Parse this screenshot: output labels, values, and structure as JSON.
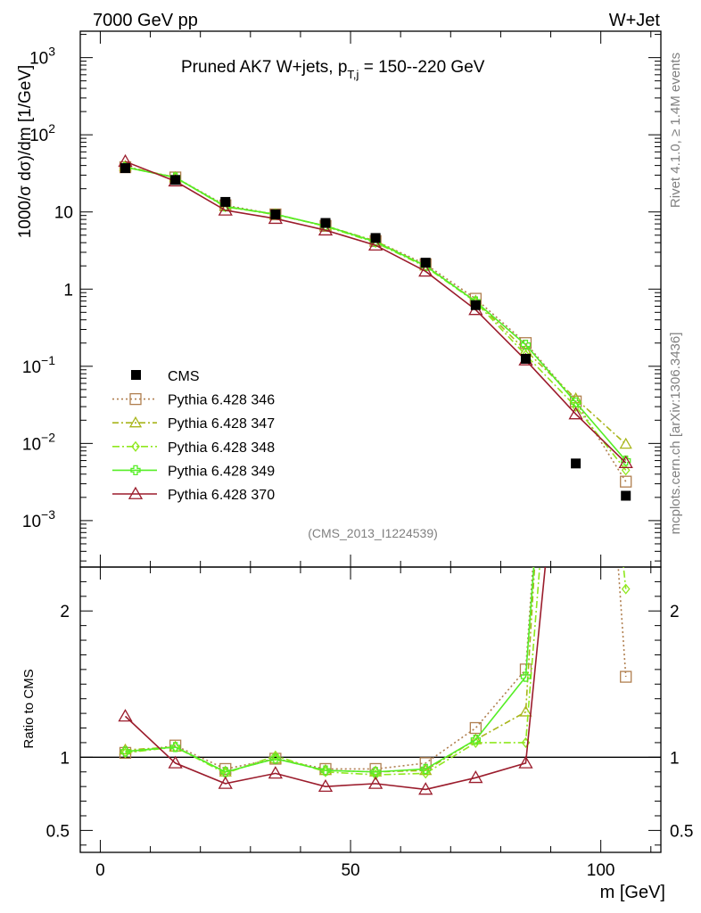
{
  "header": {
    "energy_label": "7000 GeV pp",
    "process_label": "W+Jet"
  },
  "side": {
    "rivet_label": "Rivet 4.1.0, ≥ 1.4M events",
    "source_label": "mcplots.cern.ch [arXiv:1306.3436]"
  },
  "chart_data": {
    "type": "line",
    "title_main": "Pruned AK7 W+jets, p",
    "title_sub": "T,j",
    "title_tail": " = 150--220 GeV",
    "watermark": "(CMS_2013_I1224539)",
    "ylabel_top": "1000/σ  dσ)/dm [1/GeV]",
    "ylabel_bottom": "Ratio to CMS",
    "xlabel": "m [GeV]",
    "xlim": [
      -4,
      112
    ],
    "ylim_top": [
      0.00025,
      2200
    ],
    "ylim_ratio": [
      0.35,
      2.3
    ],
    "x_ticks": [
      {
        "v": 0,
        "label": "0"
      },
      {
        "v": 50,
        "label": "50"
      },
      {
        "v": 100,
        "label": "100"
      }
    ],
    "top_ticks": [
      {
        "v": 0.001,
        "base": "10",
        "exp": "−3"
      },
      {
        "v": 0.01,
        "base": "10",
        "exp": "−2"
      },
      {
        "v": 0.1,
        "base": "10",
        "exp": "−1"
      },
      {
        "v": 1,
        "base": "1",
        "exp": ""
      },
      {
        "v": 10,
        "base": "10",
        "exp": ""
      },
      {
        "v": 100,
        "base": "10",
        "exp": "2"
      },
      {
        "v": 1000,
        "base": "10",
        "exp": "3"
      }
    ],
    "ratio_ticks": [
      {
        "v": 0.5,
        "label": "0.5"
      },
      {
        "v": 1,
        "label": "1"
      },
      {
        "v": 2,
        "label": "2"
      }
    ],
    "x": [
      5,
      15,
      25,
      35,
      45,
      55,
      65,
      75,
      85,
      95,
      105
    ],
    "cms": {
      "name": "CMS",
      "color": "#000000",
      "values": [
        37,
        26,
        13.5,
        9.3,
        7.2,
        4.6,
        2.2,
        0.62,
        0.125,
        0.0055,
        0.0021
      ]
    },
    "series": [
      {
        "name": "Pythia 6.428 346",
        "color": "#b07f4f",
        "marker": "square",
        "dash": "2,3",
        "values": [
          38,
          28,
          12.2,
          9.3,
          6.6,
          4.2,
          2.1,
          0.75,
          0.2,
          0.035,
          0.0032
        ],
        "ratio": [
          1.03,
          1.08,
          0.92,
          0.99,
          0.92,
          0.92,
          0.96,
          1.2,
          1.6,
          6.5,
          1.55
        ]
      },
      {
        "name": "Pythia 6.428 347",
        "color": "#a8b51a",
        "marker": "triangle",
        "dash": "7,3,2,3",
        "values": [
          39,
          28,
          11.8,
          9.2,
          6.6,
          4.2,
          2.0,
          0.7,
          0.16,
          0.038,
          0.0098
        ],
        "ratio": [
          1.05,
          1.07,
          0.9,
          0.99,
          0.91,
          0.9,
          0.91,
          1.12,
          1.31,
          6.9,
          4.6
        ]
      },
      {
        "name": "Pythia 6.428 348",
        "color": "#8fe81e",
        "marker": "diamond",
        "dash": "8,3,2,3",
        "values": [
          38,
          28,
          11.6,
          9.4,
          6.5,
          4.0,
          1.95,
          0.68,
          0.14,
          0.03,
          0.0045
        ],
        "ratio": [
          1.03,
          1.07,
          0.89,
          1.01,
          0.9,
          0.88,
          0.89,
          1.1,
          1.1,
          5.4,
          2.15
        ]
      },
      {
        "name": "Pythia 6.428 349",
        "color": "#55ee25",
        "marker": "cross",
        "dash": "",
        "values": [
          38,
          28,
          11.8,
          9.3,
          6.6,
          4.1,
          2.0,
          0.69,
          0.19,
          0.034,
          0.006
        ],
        "ratio": [
          1.04,
          1.07,
          0.9,
          0.99,
          0.91,
          0.9,
          0.92,
          1.12,
          1.55,
          6.2,
          2.9
        ]
      },
      {
        "name": "Pythia 6.428 370",
        "color": "#9b1c2c",
        "marker": "triangle-open",
        "dash": "",
        "values": [
          45,
          25,
          10.5,
          8.2,
          5.8,
          3.7,
          1.7,
          0.54,
          0.12,
          0.024,
          0.0056
        ],
        "ratio": [
          1.28,
          0.96,
          0.82,
          0.89,
          0.8,
          0.82,
          0.78,
          0.86,
          0.96,
          4.4,
          2.7
        ]
      }
    ]
  }
}
